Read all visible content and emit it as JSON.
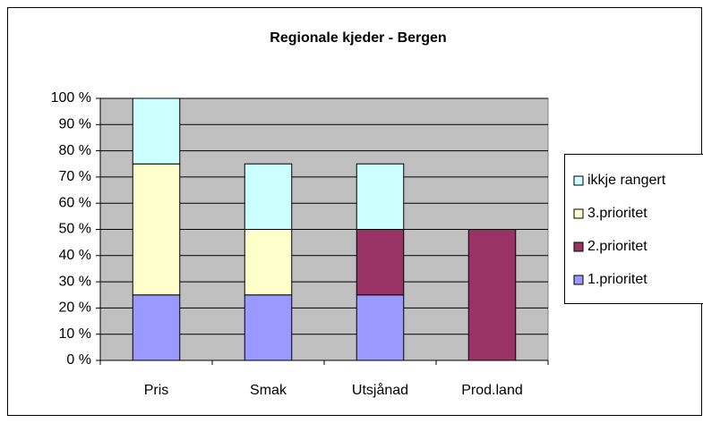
{
  "chart_data": {
    "type": "stacked_bar",
    "title": "Regionale kjeder - Bergen",
    "categories": [
      "Pris",
      "Smak",
      "Utsjånad",
      "Prod.land"
    ],
    "series": [
      {
        "name": "1.prioritet",
        "color": "#9999ff",
        "values": [
          25,
          25,
          25,
          0
        ]
      },
      {
        "name": "2.prioritet",
        "color": "#993366",
        "values": [
          0,
          0,
          25,
          50
        ]
      },
      {
        "name": "3.prioritet",
        "color": "#ffffcc",
        "values": [
          50,
          25,
          0,
          0
        ]
      },
      {
        "name": "ikkje rangert",
        "color": "#ccffff",
        "values": [
          25,
          25,
          25,
          0
        ]
      }
    ],
    "ylim": [
      0,
      100
    ],
    "yticks": [
      {
        "value": 0,
        "label": "0 %"
      },
      {
        "value": 10,
        "label": "10 %"
      },
      {
        "value": 20,
        "label": "20 %"
      },
      {
        "value": 30,
        "label": "30 %"
      },
      {
        "value": 40,
        "label": "40 %"
      },
      {
        "value": 50,
        "label": "50 %"
      },
      {
        "value": 60,
        "label": "60 %"
      },
      {
        "value": 70,
        "label": "70 %"
      },
      {
        "value": 80,
        "label": "80 %"
      },
      {
        "value": 90,
        "label": "90 %"
      },
      {
        "value": 100,
        "label": "100 %"
      }
    ],
    "grid": true,
    "legend": "right"
  }
}
